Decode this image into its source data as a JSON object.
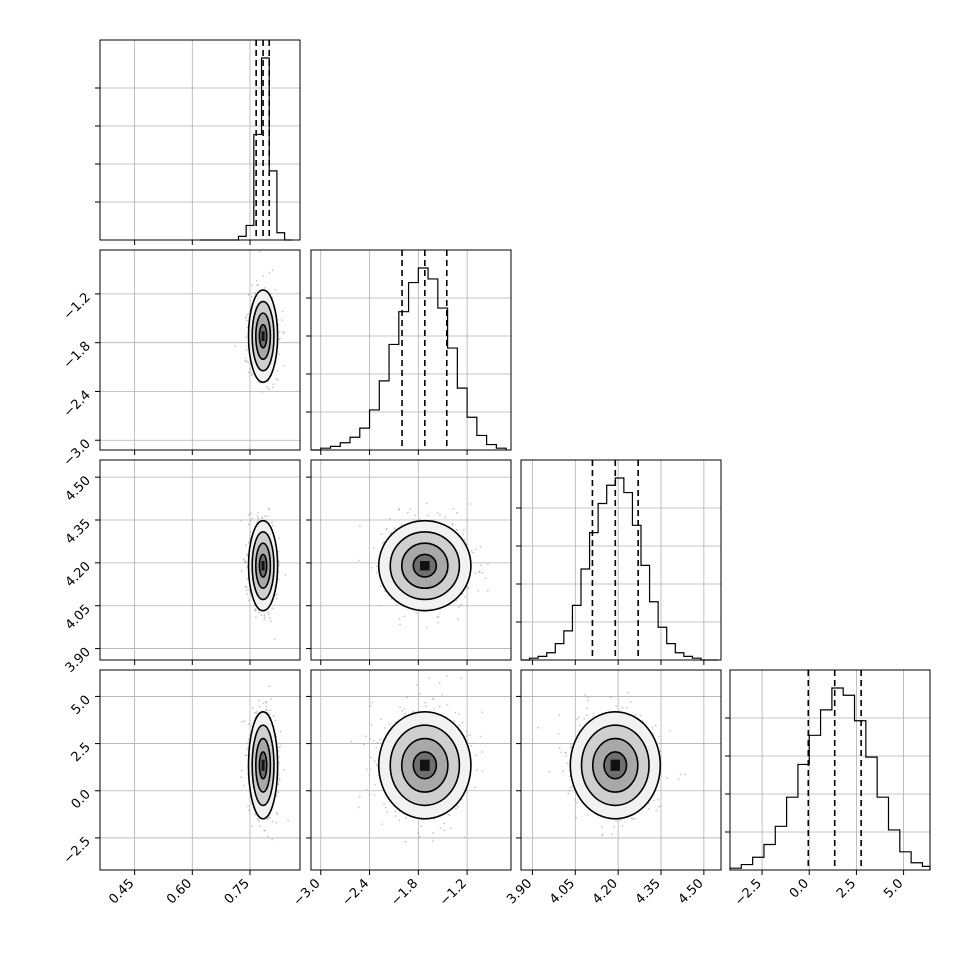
{
  "chart_data": {
    "type": "corner",
    "grid": true,
    "parameters": [
      {
        "range": [
          0.36,
          0.88
        ],
        "ticks": [
          "0.45",
          "0.60",
          "0.75"
        ],
        "tick_values": [
          0.45,
          0.6,
          0.75
        ],
        "mean": 0.784,
        "sigma": 0.018,
        "quantiles": [
          0.766,
          0.784,
          0.8
        ]
      },
      {
        "range": [
          -3.12,
          -0.66
        ],
        "ticks": [
          "−3.0",
          "−2.4",
          "−1.8",
          "−1.2"
        ],
        "tick_values": [
          -3.0,
          -2.4,
          -1.8,
          -1.2
        ],
        "mean": -1.72,
        "sigma": 0.27,
        "quantiles": [
          -2.0,
          -1.72,
          -1.45
        ]
      },
      {
        "range": [
          3.86,
          4.56
        ],
        "ticks": [
          "3.90",
          "4.05",
          "4.20",
          "4.35",
          "4.50"
        ],
        "tick_values": [
          3.9,
          4.05,
          4.2,
          4.35,
          4.5
        ],
        "mean": 4.19,
        "sigma": 0.075,
        "quantiles": [
          4.11,
          4.19,
          4.27
        ]
      },
      {
        "range": [
          -4.2,
          6.4
        ],
        "ticks": [
          "−2.5",
          "0.0",
          "2.5",
          "5.0"
        ],
        "tick_values": [
          -2.5,
          0.0,
          2.5,
          5.0
        ],
        "mean": 1.35,
        "sigma": 1.35,
        "quantiles": [
          -0.05,
          1.35,
          2.75
        ]
      }
    ],
    "histograms": [
      {
        "param": 0,
        "bins_x": [
          0.62,
          0.64,
          0.66,
          0.68,
          0.7,
          0.72,
          0.74,
          0.76,
          0.78,
          0.8,
          0.82,
          0.84,
          0.86
        ],
        "counts": [
          0,
          0,
          0,
          0,
          0,
          2,
          8,
          58,
          100,
          38,
          4,
          0
        ]
      },
      {
        "param": 1,
        "bins_x": [
          -3.12,
          -3.0,
          -2.88,
          -2.76,
          -2.64,
          -2.52,
          -2.4,
          -2.28,
          -2.16,
          -2.04,
          -1.92,
          -1.8,
          -1.68,
          -1.56,
          -1.44,
          -1.32,
          -1.2,
          -1.08,
          -0.96,
          -0.84,
          -0.72
        ],
        "counts": [
          0,
          1,
          2,
          4,
          7,
          12,
          22,
          38,
          58,
          76,
          92,
          100,
          94,
          78,
          56,
          34,
          18,
          8,
          3,
          1
        ]
      },
      {
        "param": 2,
        "bins_x": [
          3.86,
          3.89,
          3.92,
          3.95,
          3.98,
          4.01,
          4.04,
          4.07,
          4.1,
          4.13,
          4.16,
          4.19,
          4.22,
          4.25,
          4.28,
          4.31,
          4.34,
          4.37,
          4.4,
          4.43,
          4.46,
          4.49,
          4.52,
          4.55
        ],
        "counts": [
          0,
          1,
          2,
          4,
          9,
          16,
          30,
          50,
          70,
          86,
          96,
          100,
          92,
          74,
          52,
          32,
          18,
          9,
          4,
          2,
          1,
          0,
          0
        ]
      },
      {
        "param": 3,
        "bins_x": [
          -4.2,
          -3.6,
          -3.0,
          -2.4,
          -1.8,
          -1.2,
          -0.6,
          0.0,
          0.6,
          1.2,
          1.8,
          2.4,
          3.0,
          3.6,
          4.2,
          4.8,
          5.4,
          6.0,
          6.4
        ],
        "counts": [
          1,
          3,
          7,
          14,
          24,
          40,
          58,
          74,
          88,
          100,
          96,
          82,
          62,
          40,
          22,
          10,
          4,
          2
        ]
      }
    ],
    "scatter_pairs": [
      {
        "x_param": 0,
        "y_param": 1,
        "correlation": 0.0
      },
      {
        "x_param": 0,
        "y_param": 2,
        "correlation": 0.0
      },
      {
        "x_param": 1,
        "y_param": 2,
        "correlation": 0.0
      },
      {
        "x_param": 0,
        "y_param": 3,
        "correlation": 0.0
      },
      {
        "x_param": 1,
        "y_param": 3,
        "correlation": 0.0
      },
      {
        "x_param": 2,
        "y_param": 3,
        "correlation": 0.0
      }
    ],
    "contour_levels_sigma": [
      0.5,
      1.0,
      1.5,
      2.0
    ]
  }
}
